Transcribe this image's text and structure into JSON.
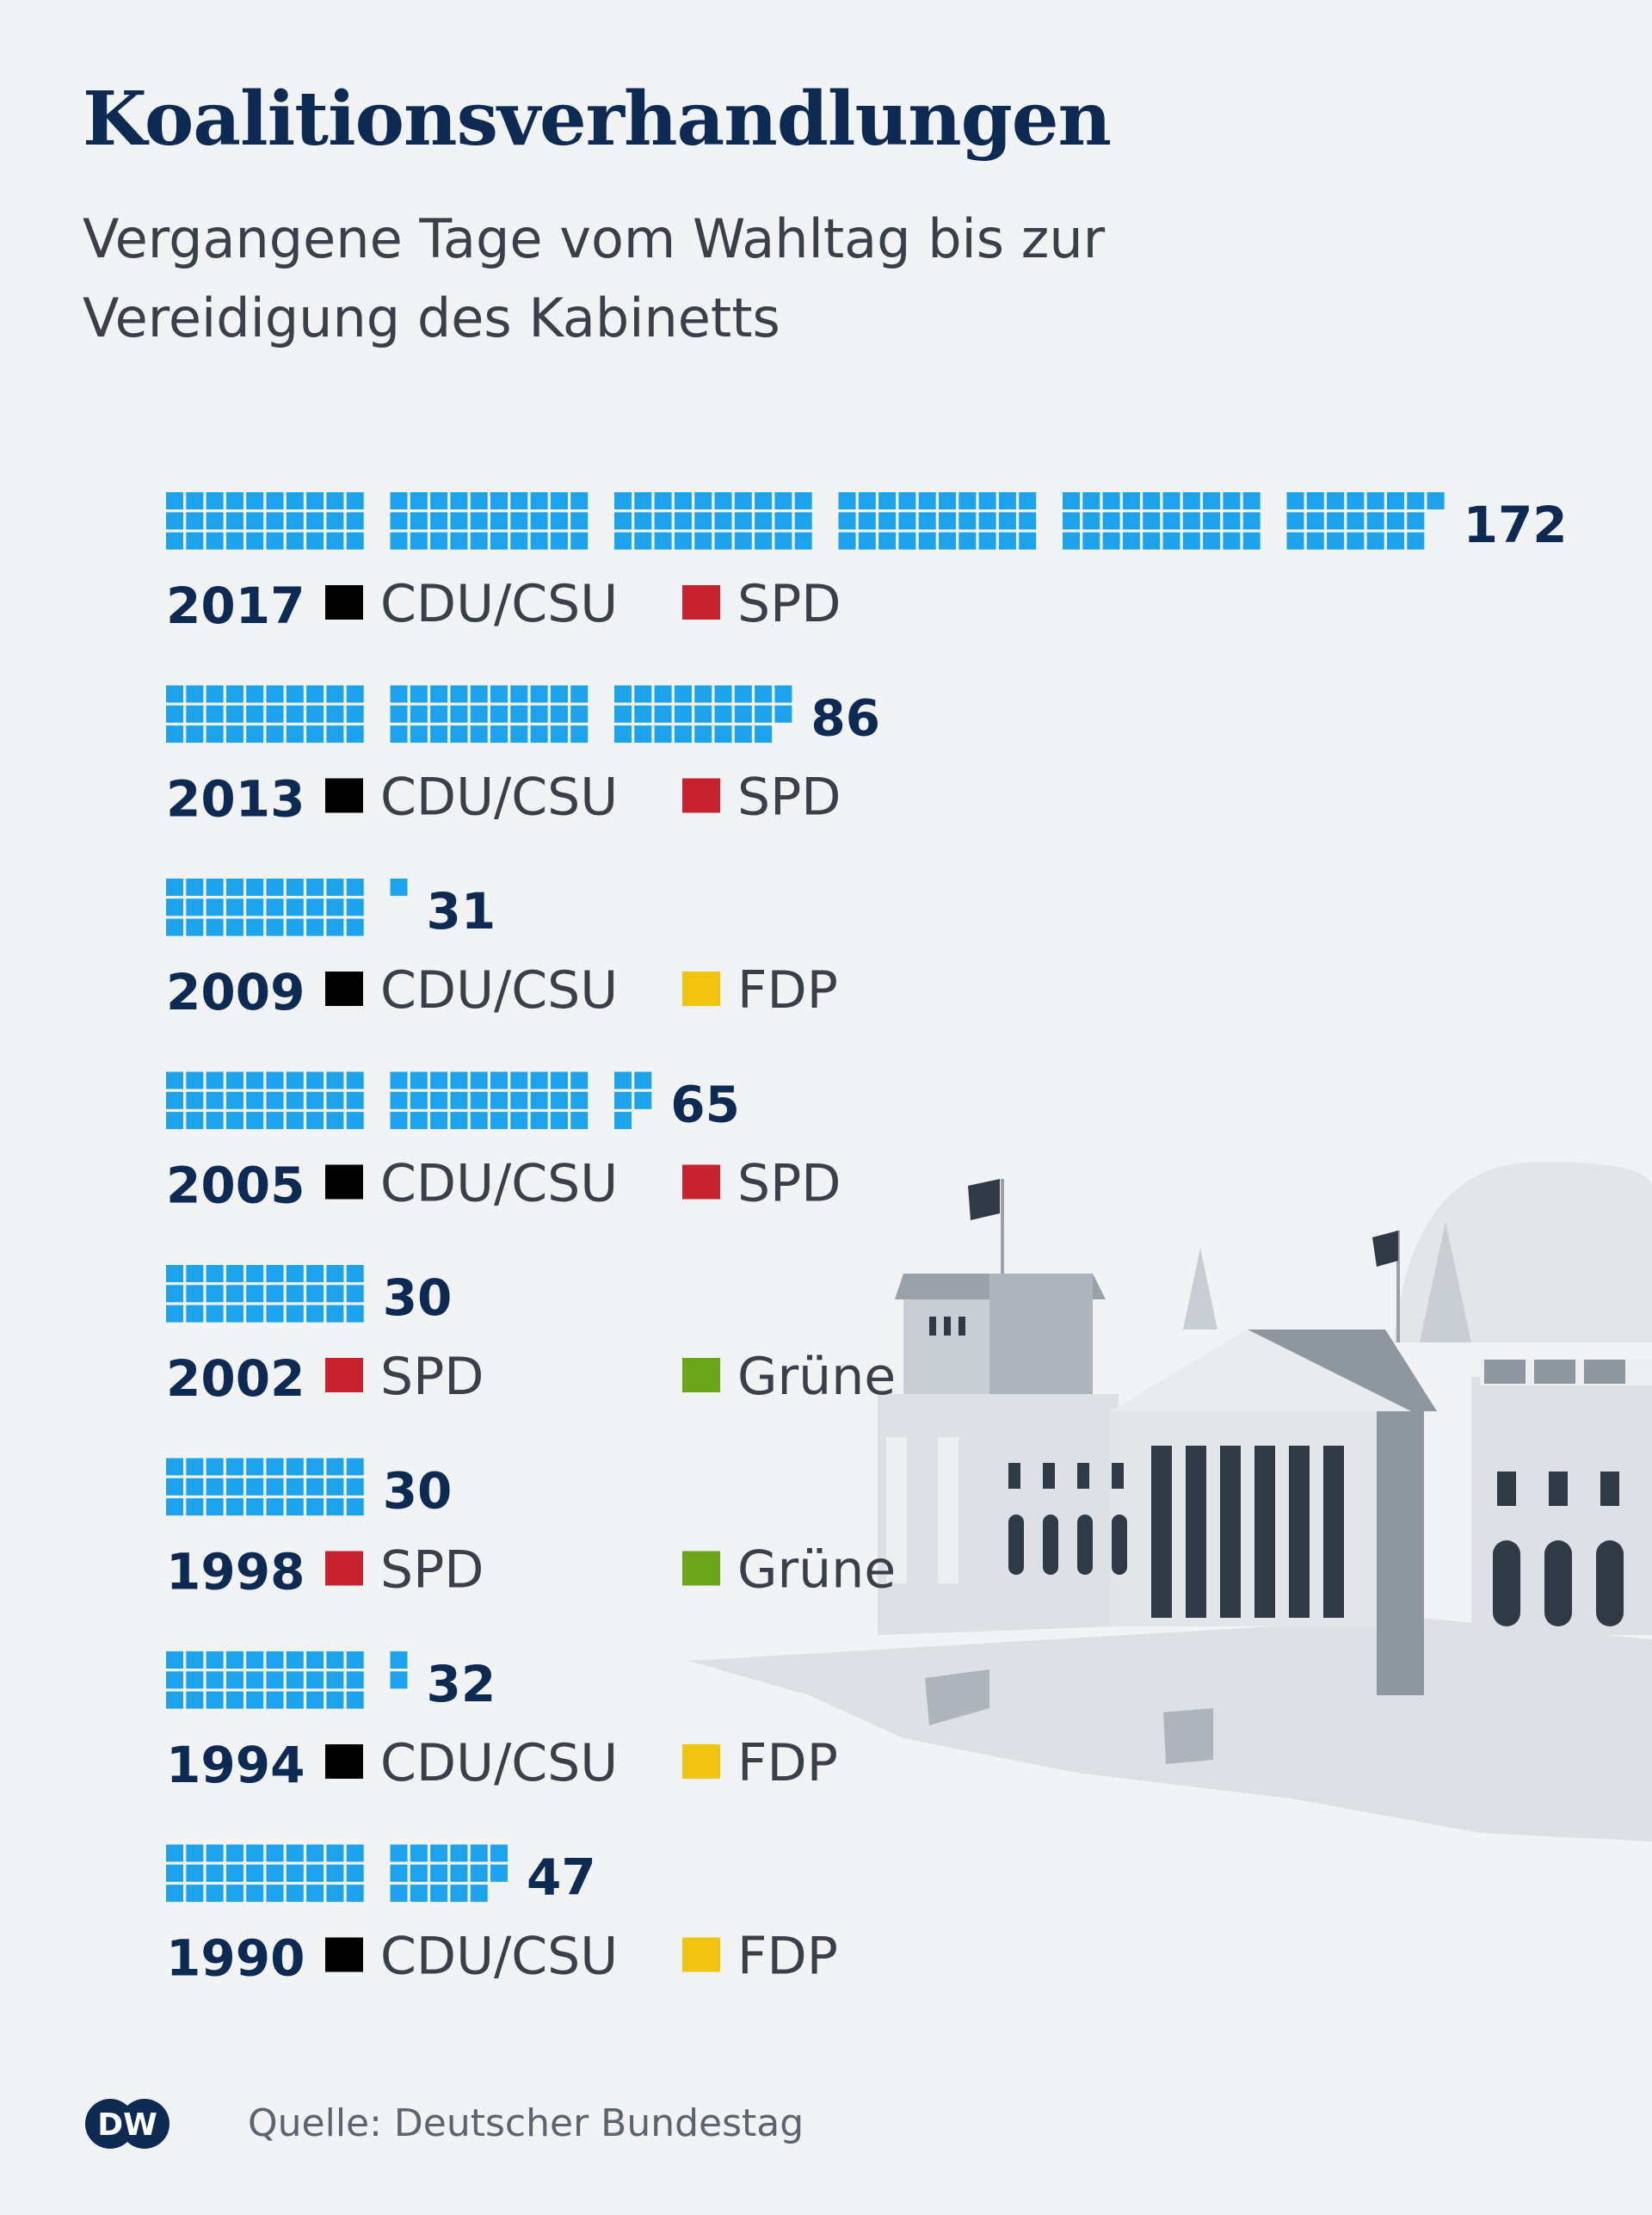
{
  "header": {
    "title": "Koalitionsverhandlungen",
    "subtitle": "Vergangene Tage vom Wahltag bis zur Vereidigung des Kabinetts"
  },
  "chart_data": {
    "type": "bar",
    "unit_symbol": "square (1 square = 1 day)",
    "title": "Koalitionsverhandlungen",
    "subtitle": "Vergangene Tage vom Wahltag bis zur Vereidigung des Kabinetts",
    "categories": [
      "2017",
      "2013",
      "2009",
      "2005",
      "2002",
      "1998",
      "1994",
      "1990"
    ],
    "values": [
      172,
      86,
      31,
      65,
      30,
      30,
      32,
      47
    ],
    "rows": [
      {
        "year": "2017",
        "days": 172,
        "parties": [
          {
            "name": "CDU/CSU",
            "color": "#000000"
          },
          {
            "name": "SPD",
            "color": "#c8212f"
          }
        ]
      },
      {
        "year": "2013",
        "days": 86,
        "parties": [
          {
            "name": "CDU/CSU",
            "color": "#000000"
          },
          {
            "name": "SPD",
            "color": "#c8212f"
          }
        ]
      },
      {
        "year": "2009",
        "days": 31,
        "parties": [
          {
            "name": "CDU/CSU",
            "color": "#000000"
          },
          {
            "name": "FDP",
            "color": "#f1c40f"
          }
        ]
      },
      {
        "year": "2005",
        "days": 65,
        "parties": [
          {
            "name": "CDU/CSU",
            "color": "#000000"
          },
          {
            "name": "SPD",
            "color": "#c8212f"
          }
        ]
      },
      {
        "year": "2002",
        "days": 30,
        "parties": [
          {
            "name": "SPD",
            "color": "#c8212f"
          },
          {
            "name": "Grüne",
            "color": "#6aa51a"
          }
        ]
      },
      {
        "year": "1998",
        "days": 30,
        "parties": [
          {
            "name": "SPD",
            "color": "#c8212f"
          },
          {
            "name": "Grüne",
            "color": "#6aa51a"
          }
        ]
      },
      {
        "year": "1994",
        "days": 32,
        "parties": [
          {
            "name": "CDU/CSU",
            "color": "#000000"
          },
          {
            "name": "FDP",
            "color": "#f1c40f"
          }
        ]
      },
      {
        "year": "1990",
        "days": 47,
        "parties": [
          {
            "name": "CDU/CSU",
            "color": "#000000"
          },
          {
            "name": "FDP",
            "color": "#f1c40f"
          }
        ]
      }
    ],
    "colors": {
      "square": "#1ca3ec"
    }
  },
  "footer": {
    "logo_text": "DW",
    "source": "Quelle: Deutscher Bundestag"
  }
}
